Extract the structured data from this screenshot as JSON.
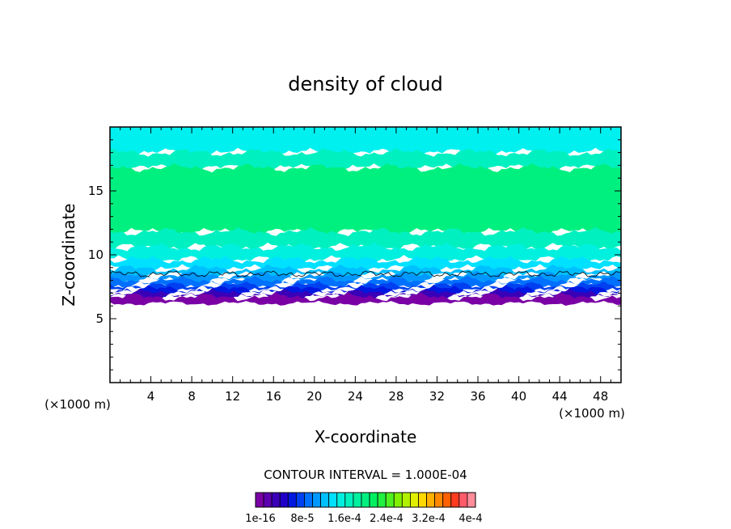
{
  "chart_data": {
    "type": "heatmap",
    "title": "density of cloud",
    "xlabel": "X-coordinate",
    "ylabel": "Z-coordinate",
    "x_unit_left": "(×1000 m)",
    "x_unit_right": "(×1000 m)",
    "xlim": [
      0,
      50
    ],
    "ylim": [
      0,
      20
    ],
    "x_ticks": [
      4,
      8,
      12,
      16,
      20,
      24,
      28,
      32,
      36,
      40,
      44,
      48
    ],
    "y_ticks": [
      5,
      10,
      15
    ],
    "contour_interval_text": "CONTOUR INTERVAL = 1.000E-04",
    "colorbar": {
      "min": 1e-16,
      "max": 0.0004,
      "tick_labels": [
        "1e-16",
        "8e-5",
        "1.6e-4",
        "2.4e-4",
        "3.2e-4",
        "4e-4"
      ],
      "colors": [
        "#7a00a6",
        "#5c00b0",
        "#3a00b8",
        "#2000c8",
        "#0018e0",
        "#0040f0",
        "#0070ff",
        "#0098ff",
        "#00c0ff",
        "#00e0ff",
        "#00f0e0",
        "#00f0c0",
        "#00f0a0",
        "#00f080",
        "#00f060",
        "#20f040",
        "#50f020",
        "#80f000",
        "#b0f000",
        "#e0f000",
        "#ffd800",
        "#ffb000",
        "#ff8800",
        "#ff6000",
        "#ff3c20",
        "#ff5a6a",
        "#ff8c9a"
      ]
    },
    "layers": [
      {
        "z_bottom": 6.2,
        "z_top": 6.7,
        "color": "#7a00a6"
      },
      {
        "z_bottom": 6.7,
        "z_top": 7.0,
        "color": "#3a00b8"
      },
      {
        "z_bottom": 7.0,
        "z_top": 7.3,
        "color": "#0018e0"
      },
      {
        "z_bottom": 7.3,
        "z_top": 7.6,
        "color": "#0040f0"
      },
      {
        "z_bottom": 7.6,
        "z_top": 8.0,
        "color": "#0070ff"
      },
      {
        "z_bottom": 8.0,
        "z_top": 8.4,
        "color": "#0098ff"
      },
      {
        "z_bottom": 8.4,
        "z_top": 8.9,
        "color": "#00c0ff"
      },
      {
        "z_bottom": 8.9,
        "z_top": 9.6,
        "color": "#00e0ff"
      },
      {
        "z_bottom": 9.6,
        "z_top": 10.6,
        "color": "#00f0e0"
      },
      {
        "z_bottom": 10.6,
        "z_top": 11.8,
        "color": "#00f0c0"
      },
      {
        "z_bottom": 11.8,
        "z_top": 16.8,
        "color": "#00f080"
      },
      {
        "z_bottom": 16.8,
        "z_top": 18.0,
        "color": "#00f0c0"
      },
      {
        "z_bottom": 18.0,
        "z_top": 20.0,
        "color": "#00f0f0"
      }
    ],
    "contour_line_z": 8.5,
    "cloud_base_z": 6.2
  }
}
